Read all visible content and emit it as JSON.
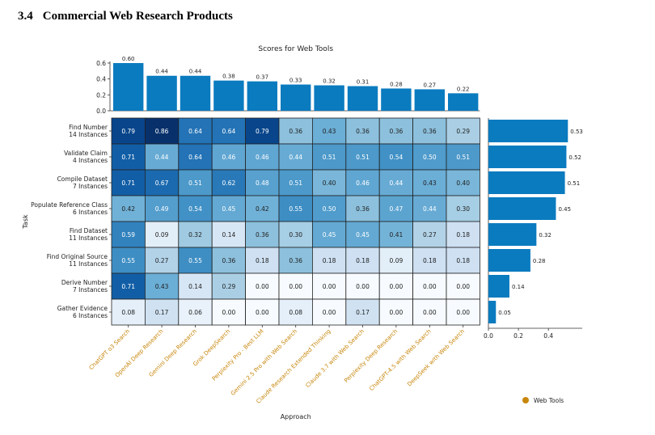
{
  "section": {
    "number": "3.4",
    "title": "Commercial Web Research Products"
  },
  "chart_data": {
    "type": "heatmap",
    "title": "Scores for Web Tools",
    "xlabel": "Approach",
    "ylabel": "Task",
    "legend": {
      "label": "Web Tools",
      "color": "#c8860a",
      "placement": "bottom-right"
    },
    "tick_color": "#c8860a",
    "approaches": [
      "ChatGPT o3 Search",
      "OpenAI Deep Research",
      "Gemini Deep Research",
      "Grok DeepSearch",
      "Perplexity Pro - Best LLM",
      "Gemini 2.5 Pro with Web Search",
      "Claude Research Extended Thinking",
      "Claude 3.7 with Web Search",
      "Perplexity Deep Research",
      "ChatGPT-4.5 with Web Search",
      "DeepSeek with Web Search"
    ],
    "tasks": [
      {
        "name": "Find Number",
        "instances": "14 Instances"
      },
      {
        "name": "Validate Claim",
        "instances": "4 Instances"
      },
      {
        "name": "Compile Dataset",
        "instances": "7 Instances"
      },
      {
        "name": "Populate Reference Class",
        "instances": "6 Instances"
      },
      {
        "name": "Find Dataset",
        "instances": "11 Instances"
      },
      {
        "name": "Find Original Source",
        "instances": "11 Instances"
      },
      {
        "name": "Derive Number",
        "instances": "7 Instances"
      },
      {
        "name": "Gather Evidence",
        "instances": "6 Instances"
      }
    ],
    "scores": [
      [
        0.79,
        0.86,
        0.64,
        0.64,
        0.79,
        0.36,
        0.43,
        0.36,
        0.36,
        0.36,
        0.29
      ],
      [
        0.71,
        0.44,
        0.64,
        0.46,
        0.46,
        0.44,
        0.51,
        0.51,
        0.54,
        0.5,
        0.51
      ],
      [
        0.71,
        0.67,
        0.51,
        0.62,
        0.48,
        0.51,
        0.4,
        0.46,
        0.44,
        0.43,
        0.4
      ],
      [
        0.42,
        0.49,
        0.54,
        0.45,
        0.42,
        0.55,
        0.5,
        0.36,
        0.47,
        0.44,
        0.3
      ],
      [
        0.59,
        0.09,
        0.32,
        0.14,
        0.36,
        0.3,
        0.45,
        0.45,
        0.41,
        0.27,
        0.18
      ],
      [
        0.55,
        0.27,
        0.55,
        0.36,
        0.18,
        0.36,
        0.18,
        0.18,
        0.09,
        0.18,
        0.18
      ],
      [
        0.71,
        0.43,
        0.14,
        0.29,
        0.0,
        0.0,
        0.0,
        0.0,
        0.0,
        0.0,
        0.0
      ],
      [
        0.08,
        0.17,
        0.06,
        0.0,
        0.0,
        0.08,
        0.0,
        0.17,
        0.0,
        0.0,
        0.0
      ]
    ],
    "approach_means": [
      0.6,
      0.44,
      0.44,
      0.38,
      0.37,
      0.33,
      0.32,
      0.31,
      0.28,
      0.27,
      0.22
    ],
    "approach_mean_labels": [
      "0.60",
      "0.44",
      "0.44",
      "0.38",
      "0.37",
      "0.33",
      "0.32",
      "0.31",
      "0.28",
      "0.27",
      "0.22"
    ],
    "top_axis": {
      "ylim": [
        0,
        0.6
      ],
      "ticks": [
        "0.0",
        "0.2",
        "0.4",
        "0.6"
      ]
    },
    "task_means": [
      0.53,
      0.52,
      0.51,
      0.45,
      0.32,
      0.28,
      0.14,
      0.05
    ],
    "task_mean_labels": [
      "0.53",
      "0.52",
      "0.51",
      "0.45",
      "0.32",
      "0.28",
      "0.14",
      "0.05"
    ],
    "right_axis": {
      "xlim": [
        0,
        0.55
      ],
      "ticks": [
        "0.0",
        "0.2",
        "0.4"
      ]
    },
    "bar_color": "#0a7bbf"
  }
}
